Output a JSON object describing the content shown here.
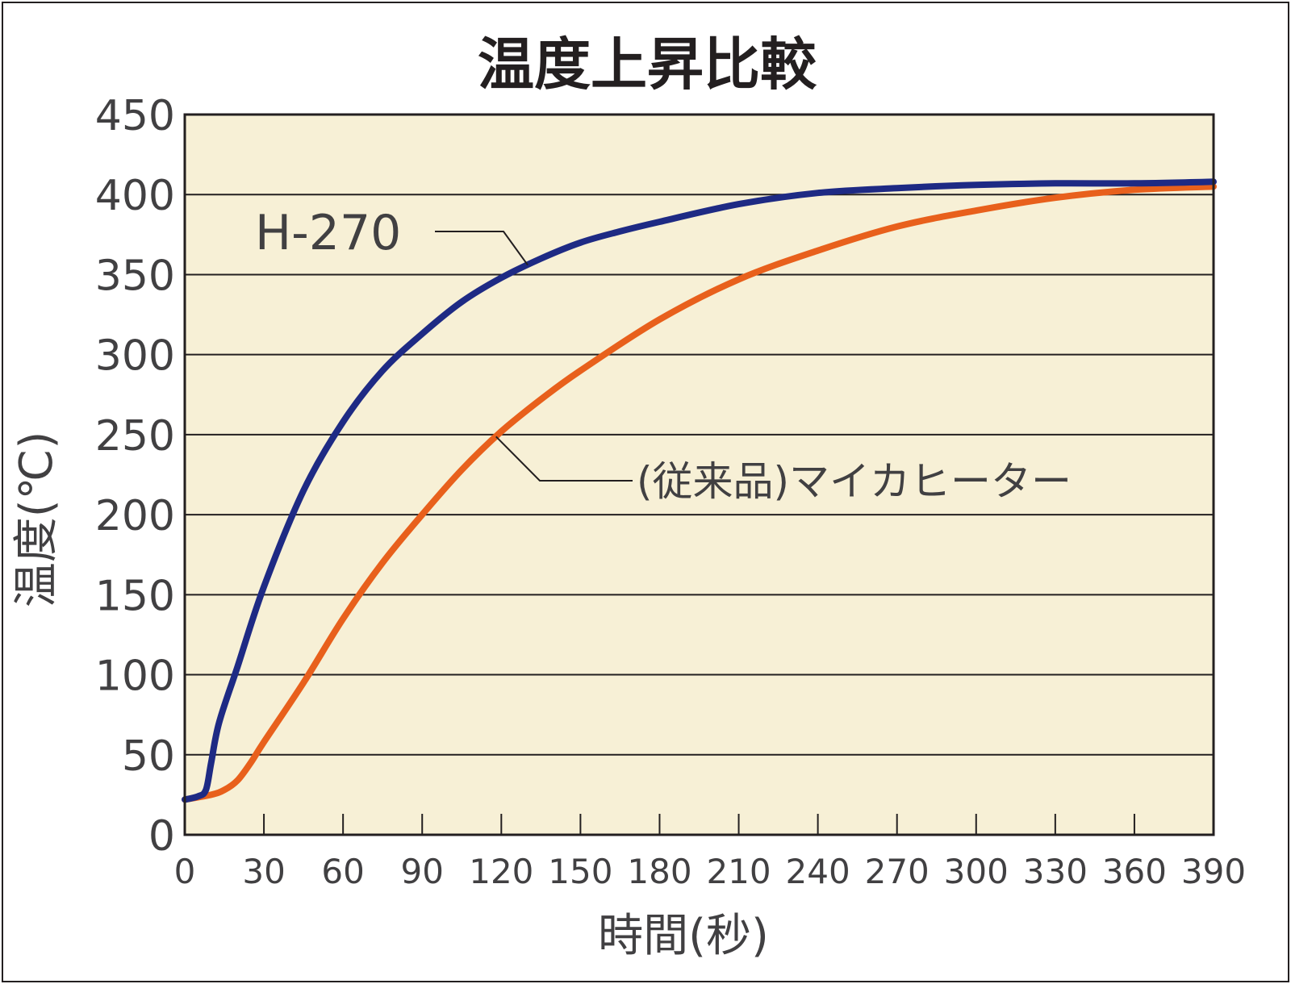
{
  "chart_data": {
    "type": "line",
    "title": "温度上昇比較",
    "xlabel": "時間(秒)",
    "ylabel": "温度(℃)",
    "xlim": [
      0,
      390
    ],
    "ylim": [
      0,
      450
    ],
    "x_ticks": [
      0,
      30,
      60,
      90,
      120,
      150,
      180,
      210,
      240,
      270,
      300,
      330,
      360,
      390
    ],
    "y_ticks": [
      0,
      50,
      100,
      150,
      200,
      250,
      300,
      350,
      400,
      450
    ],
    "grid": "horizontal",
    "plot_background": "#f7f0d6",
    "series": [
      {
        "name": "H-270",
        "color": "#1e2a84",
        "x": [
          0,
          5,
          8,
          10,
          13,
          20,
          30,
          45,
          60,
          75,
          90,
          105,
          120,
          135,
          150,
          165,
          180,
          210,
          240,
          270,
          300,
          330,
          360,
          390
        ],
        "y": [
          22,
          24,
          28,
          45,
          70,
          105,
          155,
          215,
          258,
          290,
          313,
          333,
          348,
          360,
          370,
          377,
          383,
          394,
          401,
          404,
          406,
          407,
          407,
          408
        ]
      },
      {
        "name": "(従来品)マイカヒーター",
        "color": "#e8601c",
        "x": [
          0,
          10,
          15,
          20,
          25,
          30,
          45,
          60,
          75,
          90,
          105,
          120,
          135,
          150,
          180,
          210,
          240,
          270,
          300,
          330,
          360,
          390
        ],
        "y": [
          22,
          25,
          28,
          34,
          45,
          58,
          95,
          135,
          170,
          200,
          228,
          252,
          272,
          290,
          322,
          347,
          365,
          380,
          390,
          398,
          403,
          405
        ]
      }
    ]
  }
}
